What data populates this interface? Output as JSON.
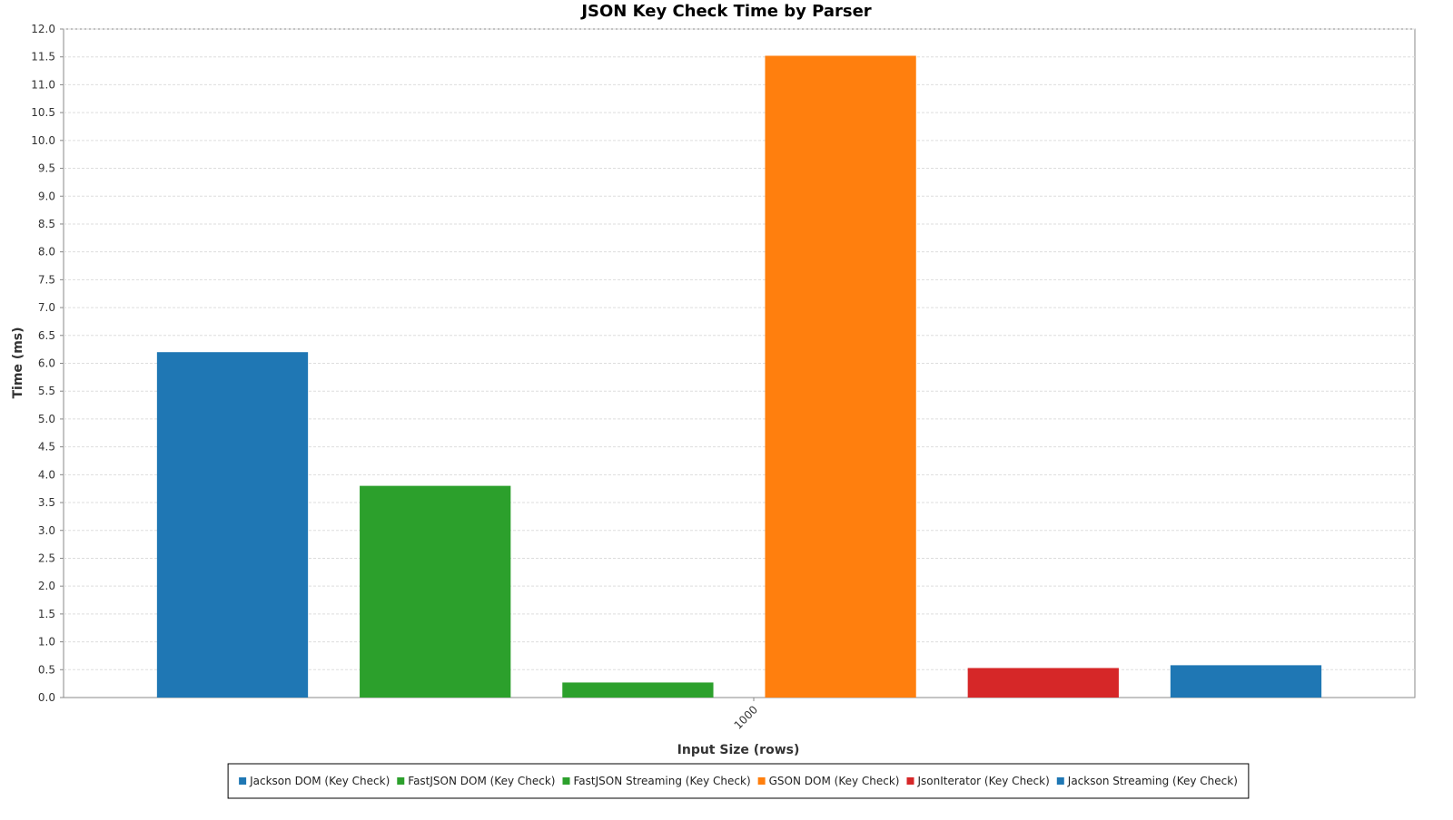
{
  "chart_data": {
    "type": "bar",
    "title": "JSON Key Check Time by Parser",
    "xlabel": "Input Size (rows)",
    "ylabel": "Time (ms)",
    "categories": [
      "1000"
    ],
    "ylim": [
      0,
      12.0
    ],
    "ytick_step": 0.5,
    "grid": true,
    "legend_position": "bottom",
    "series": [
      {
        "name": "Jackson DOM (Key Check)",
        "color": "#1f77b4",
        "values": [
          6.2
        ]
      },
      {
        "name": "FastJSON DOM (Key Check)",
        "color": "#2ca02c",
        "values": [
          3.8
        ]
      },
      {
        "name": "FastJSON Streaming (Key Check)",
        "color": "#2ca02c",
        "values": [
          0.27
        ]
      },
      {
        "name": "GSON DOM (Key Check)",
        "color": "#ff7f0e",
        "values": [
          11.52
        ]
      },
      {
        "name": "JsonIterator (Key Check)",
        "color": "#d62728",
        "values": [
          0.53
        ]
      },
      {
        "name": "Jackson Streaming (Key Check)",
        "color": "#1f77b4",
        "values": [
          0.58
        ]
      }
    ]
  }
}
